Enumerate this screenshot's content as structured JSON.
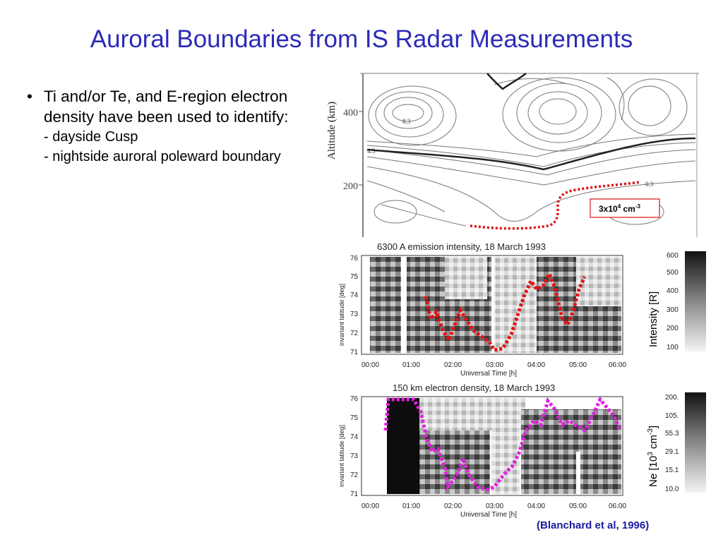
{
  "slide": {
    "title": "Auroral Boundaries from IS Radar Measurements",
    "bullet_main": "Ti and/or Te, and E-region electron density have been used to identify:",
    "bullet_sub1": "- dayside Cusp",
    "bullet_sub2": "- nightside auroral poleward boundary",
    "citation": "(Blanchard et al, 1996)"
  },
  "top_panel": {
    "ylabel": "Altitude (km)",
    "yticks": [
      "400",
      "200"
    ],
    "contour_labels": [
      "8.3",
      "4.3",
      "0.3"
    ],
    "box_label_base": "3x10",
    "box_label_exp": "4",
    "box_label_unit": " cm",
    "box_label_unit_exp": "-3",
    "colors": {
      "boundary": "#dd1111",
      "box": "#dd1111"
    }
  },
  "panel1": {
    "title": "6300 A emission intensity, 18 March 1993",
    "ylabel": "invariant latitude [deg]",
    "xlabel": "Universal Time [h]",
    "yticks": [
      "76",
      "75",
      "74",
      "73",
      "72",
      "71"
    ],
    "xticks": [
      "00:00",
      "01:00",
      "02:00",
      "03:00",
      "04:00",
      "05:00",
      "06:00"
    ],
    "colorbar_label": "Intensity [R]",
    "colorbar_ticks": [
      "600",
      "500",
      "400",
      "300",
      "200",
      "100"
    ],
    "boundary_color": "#e81010"
  },
  "panel2": {
    "title": "150 km electron density, 18 March 1993",
    "ylabel": "invariant latitude [deg]",
    "xlabel": "Universal Time [h]",
    "yticks": [
      "76",
      "75",
      "74",
      "73",
      "72",
      "71"
    ],
    "xticks": [
      "00:00",
      "01:00",
      "02:00",
      "03:00",
      "04:00",
      "05:00",
      "06:00"
    ],
    "colorbar_label_prefix": "Ne [10",
    "colorbar_label_exp": "3",
    "colorbar_label_mid": " cm",
    "colorbar_label_exp2": "-3",
    "colorbar_label_suffix": "]",
    "colorbar_ticks": [
      "200.",
      "105.",
      "55.3",
      "29.1",
      "15.1",
      "10.0"
    ],
    "boundary_color": "#e020e0"
  }
}
